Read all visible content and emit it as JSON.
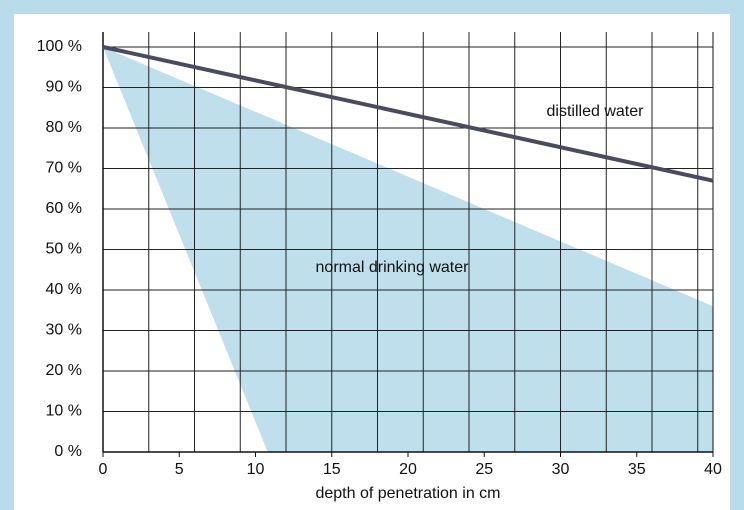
{
  "chart_data": {
    "type": "line",
    "x_label": "depth of penetration in cm",
    "xlim": [
      0,
      40
    ],
    "xticks": [
      0,
      5,
      10,
      15,
      20,
      25,
      30,
      35,
      40
    ],
    "xgrid": [
      3,
      6,
      9,
      12,
      15,
      18,
      21,
      24,
      27,
      30,
      33,
      36,
      39
    ],
    "ylim": [
      0,
      100
    ],
    "yticks": [
      {
        "value": 0,
        "label": "0 %"
      },
      {
        "value": 10,
        "label": "10 %"
      },
      {
        "value": 20,
        "label": "20 %"
      },
      {
        "value": 30,
        "label": "30 %"
      },
      {
        "value": 40,
        "label": "40 %"
      },
      {
        "value": 50,
        "label": "50 %"
      },
      {
        "value": 60,
        "label": "60 %"
      },
      {
        "value": 70,
        "label": "70 %"
      },
      {
        "value": 80,
        "label": "80 %"
      },
      {
        "value": 90,
        "label": "90 %"
      },
      {
        "value": 100,
        "label": "100 %"
      }
    ],
    "grid": true,
    "series": [
      {
        "name": "distilled water",
        "kind": "line",
        "color": "#4a4b5e",
        "x": [
          0,
          40
        ],
        "values": [
          100,
          67
        ]
      },
      {
        "name": "normal drinking water",
        "kind": "area",
        "color": "#bfdfec",
        "x": [
          0,
          40
        ],
        "values": [
          100,
          36
        ],
        "lower_x": [
          0,
          10.8
        ],
        "lower_values": [
          100,
          0
        ]
      }
    ]
  }
}
